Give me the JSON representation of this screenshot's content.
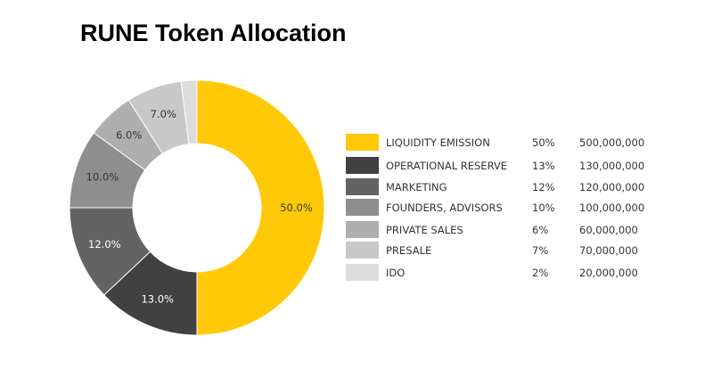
{
  "title": "RUNE Token Allocation",
  "chart_data": {
    "type": "pie",
    "title": "RUNE Token Allocation",
    "slices": [
      {
        "label": "LIQUIDITY EMISSION",
        "percent_text": "50%",
        "amount": "500,000,000",
        "value": 50.0,
        "chart_label": "50.0%",
        "color": "#FFC907",
        "text_color": "#333333"
      },
      {
        "label": "OPERATIONAL RESERVE",
        "percent_text": "13%",
        "amount": "130,000,000",
        "value": 13.0,
        "chart_label": "13.0%",
        "color": "#414141",
        "text_color": "#FFFFFF"
      },
      {
        "label": "MARKETING",
        "percent_text": "12%",
        "amount": "120,000,000",
        "value": 12.0,
        "chart_label": "12.0%",
        "color": "#636363",
        "text_color": "#FFFFFF"
      },
      {
        "label": "FOUNDERS, ADVISORS",
        "percent_text": "10%",
        "amount": "100,000,000",
        "value": 10.0,
        "chart_label": "10.0%",
        "color": "#8E8E8E",
        "text_color": "#333333"
      },
      {
        "label": "PRIVATE SALES",
        "percent_text": "6%",
        "amount": "60,000,000",
        "value": 6.0,
        "chart_label": "6.0%",
        "color": "#AEAEAE",
        "text_color": "#333333"
      },
      {
        "label": "PRESALE",
        "percent_text": "7%",
        "amount": "70,000,000",
        "value": 7.0,
        "chart_label": "7.0%",
        "color": "#C8C8C8",
        "text_color": "#333333"
      },
      {
        "label": "IDO",
        "percent_text": "2%",
        "amount": "20,000,000",
        "value": 2.0,
        "chart_label": "",
        "color": "#DCDCDC",
        "text_color": "#333333"
      }
    ],
    "donut": true,
    "legend": "right"
  }
}
